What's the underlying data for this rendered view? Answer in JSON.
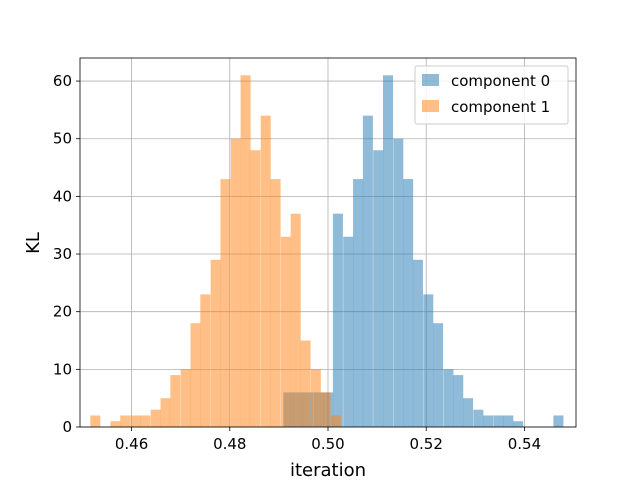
{
  "chart_data": {
    "type": "histogram",
    "xlabel": "iteration",
    "ylabel": "KL",
    "xlim": [
      0.4495,
      0.5505
    ],
    "ylim": [
      0,
      64
    ],
    "x_ticks": [
      0.46,
      0.48,
      0.5,
      0.52,
      0.54
    ],
    "x_tick_labels": [
      "0.46",
      "0.48",
      "0.50",
      "0.52",
      "0.54"
    ],
    "y_ticks": [
      0,
      10,
      20,
      30,
      40,
      50,
      60
    ],
    "y_tick_labels": [
      "0",
      "10",
      "20",
      "30",
      "40",
      "50",
      "60"
    ],
    "grid": true,
    "legend_position": "upper right",
    "series": [
      {
        "name": "component 0",
        "color": "#1f77b4",
        "alpha": 0.5,
        "bin_width": 0.00204,
        "bins": [
          [
            0.4909,
            6
          ],
          [
            0.4929,
            6
          ],
          [
            0.4949,
            6
          ],
          [
            0.497,
            6
          ],
          [
            0.499,
            6
          ],
          [
            0.501,
            37
          ],
          [
            0.5031,
            33
          ],
          [
            0.5051,
            43
          ],
          [
            0.5071,
            54
          ],
          [
            0.5092,
            48
          ],
          [
            0.5112,
            61
          ],
          [
            0.5133,
            50
          ],
          [
            0.5153,
            43
          ],
          [
            0.5173,
            29
          ],
          [
            0.5194,
            23
          ],
          [
            0.5214,
            18
          ],
          [
            0.5235,
            10
          ],
          [
            0.5255,
            9
          ],
          [
            0.5275,
            5
          ],
          [
            0.5296,
            3
          ],
          [
            0.5316,
            2
          ],
          [
            0.5337,
            2
          ],
          [
            0.5357,
            2
          ],
          [
            0.5377,
            1
          ],
          [
            0.5459,
            2
          ]
        ]
      },
      {
        "name": "component 1",
        "color": "#ff7f0e",
        "alpha": 0.5,
        "bin_width": 0.00204,
        "bins": [
          [
            0.4516,
            2
          ],
          [
            0.4557,
            1
          ],
          [
            0.4577,
            2
          ],
          [
            0.4598,
            2
          ],
          [
            0.4618,
            2
          ],
          [
            0.4639,
            3
          ],
          [
            0.4659,
            5
          ],
          [
            0.4679,
            9
          ],
          [
            0.47,
            10
          ],
          [
            0.472,
            18
          ],
          [
            0.474,
            23
          ],
          [
            0.4761,
            29
          ],
          [
            0.4781,
            43
          ],
          [
            0.4802,
            50
          ],
          [
            0.4822,
            61
          ],
          [
            0.4842,
            48
          ],
          [
            0.4863,
            54
          ],
          [
            0.4883,
            43
          ],
          [
            0.4904,
            33
          ],
          [
            0.4924,
            37
          ],
          [
            0.4944,
            15
          ],
          [
            0.4965,
            10
          ],
          [
            0.4985,
            6
          ],
          [
            0.5006,
            2
          ]
        ]
      }
    ]
  }
}
